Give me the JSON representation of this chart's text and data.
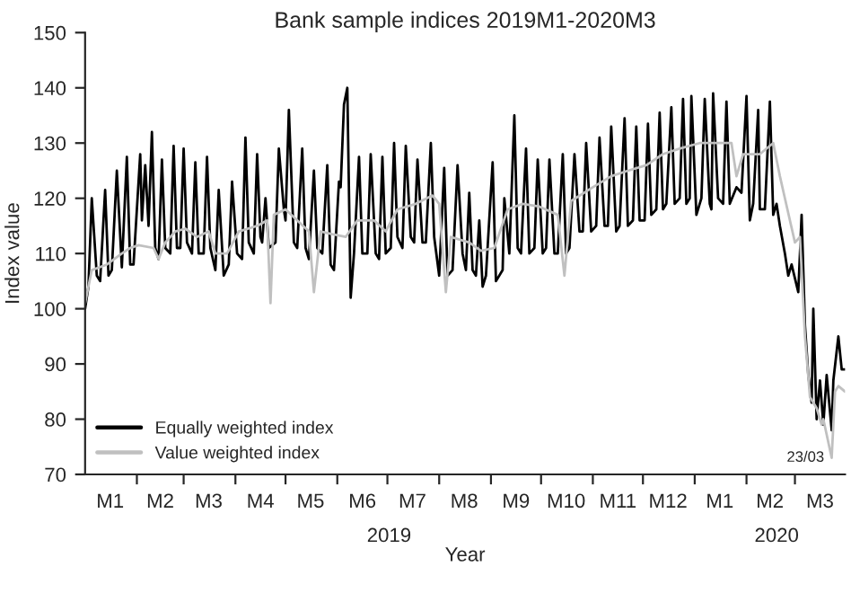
{
  "chart_data": {
    "type": "line",
    "title": "Bank sample indices 2019M1-2020M3",
    "xlabel": "Year",
    "ylabel": "Index value",
    "xlim": [
      "2019-01-01",
      "2020-03-31"
    ],
    "ylim": [
      70,
      150
    ],
    "yticks": [
      70,
      80,
      90,
      100,
      110,
      120,
      130,
      140,
      150
    ],
    "xticks": [
      {
        "value": "2019-01-16",
        "label": "M1"
      },
      {
        "value": "2019-02-01",
        "label": null
      },
      {
        "value": "2019-02-15",
        "label": "M2"
      },
      {
        "value": "2019-03-01",
        "label": null
      },
      {
        "value": "2019-03-16",
        "label": "M3"
      },
      {
        "value": "2019-04-01",
        "label": null
      },
      {
        "value": "2019-04-16",
        "label": "M4"
      },
      {
        "value": "2019-05-01",
        "label": null
      },
      {
        "value": "2019-05-16",
        "label": "M5"
      },
      {
        "value": "2019-06-01",
        "label": null
      },
      {
        "value": "2019-06-16",
        "label": "M6"
      },
      {
        "value": "2019-07-01",
        "label": null
      },
      {
        "value": "2019-07-16",
        "label": "M7"
      },
      {
        "value": "2019-08-01",
        "label": null
      },
      {
        "value": "2019-08-16",
        "label": "M8"
      },
      {
        "value": "2019-09-01",
        "label": null
      },
      {
        "value": "2019-09-16",
        "label": "M9"
      },
      {
        "value": "2019-10-01",
        "label": null
      },
      {
        "value": "2019-10-16",
        "label": "M10"
      },
      {
        "value": "2019-11-01",
        "label": null
      },
      {
        "value": "2019-11-16",
        "label": "M11"
      },
      {
        "value": "2019-12-01",
        "label": null
      },
      {
        "value": "2019-12-16",
        "label": "M12"
      },
      {
        "value": "2020-01-01",
        "label": null
      },
      {
        "value": "2020-01-16",
        "label": "M1"
      },
      {
        "value": "2020-02-01",
        "label": null
      },
      {
        "value": "2020-02-15",
        "label": "M2"
      },
      {
        "value": "2020-03-01",
        "label": null
      },
      {
        "value": "2020-03-16",
        "label": "M3"
      }
    ],
    "grid": false,
    "legend": "bottom left",
    "marker": "none",
    "line_style": "solid",
    "annotations": [
      "2019",
      "2020",
      {
        "text": "23/03",
        "x": "2020-03-23",
        "y": 73
      }
    ],
    "series": [
      {
        "name": "Equally weighted index",
        "color": "#000000",
        "x": [
          "2019-01-01",
          "2019-01-03",
          "2019-01-05",
          "2019-01-08",
          "2019-01-10",
          "2019-01-13",
          "2019-01-15",
          "2019-01-17",
          "2019-01-20",
          "2019-01-23",
          "2019-01-26",
          "2019-01-28",
          "2019-01-30",
          "2019-02-03",
          "2019-02-04",
          "2019-02-06",
          "2019-02-08",
          "2019-02-10",
          "2019-02-12",
          "2019-02-14",
          "2019-02-16",
          "2019-02-18",
          "2019-02-21",
          "2019-02-23",
          "2019-02-25",
          "2019-02-27",
          "2019-03-01",
          "2019-03-03",
          "2019-03-06",
          "2019-03-08",
          "2019-03-10",
          "2019-03-13",
          "2019-03-15",
          "2019-03-17",
          "2019-03-20",
          "2019-03-22",
          "2019-03-25",
          "2019-03-28",
          "2019-03-30",
          "2019-04-02",
          "2019-04-05",
          "2019-04-07",
          "2019-04-09",
          "2019-04-12",
          "2019-04-14",
          "2019-04-16",
          "2019-04-17",
          "2019-04-19",
          "2019-04-21",
          "2019-04-25",
          "2019-04-27",
          "2019-04-30",
          "2019-05-01",
          "2019-05-03",
          "2019-05-06",
          "2019-05-08",
          "2019-05-11",
          "2019-05-13",
          "2019-05-15",
          "2019-05-18",
          "2019-05-20",
          "2019-05-23",
          "2019-05-26",
          "2019-05-28",
          "2019-05-30",
          "2019-06-02",
          "2019-06-03",
          "2019-06-05",
          "2019-06-07",
          "2019-06-09",
          "2019-06-11",
          "2019-06-14",
          "2019-06-16",
          "2019-06-19",
          "2019-06-21",
          "2019-06-24",
          "2019-06-26",
          "2019-06-28",
          "2019-06-30",
          "2019-07-03",
          "2019-07-05",
          "2019-07-07",
          "2019-07-10",
          "2019-07-12",
          "2019-07-15",
          "2019-07-17",
          "2019-07-19",
          "2019-07-22",
          "2019-07-24",
          "2019-07-27",
          "2019-07-29",
          "2019-08-01",
          "2019-08-04",
          "2019-08-06",
          "2019-08-09",
          "2019-08-12",
          "2019-08-15",
          "2019-08-17",
          "2019-08-19",
          "2019-08-21",
          "2019-08-23",
          "2019-08-25",
          "2019-08-27",
          "2019-08-29",
          "2019-09-02",
          "2019-09-04",
          "2019-09-08",
          "2019-09-09",
          "2019-09-12",
          "2019-09-15",
          "2019-09-17",
          "2019-09-19",
          "2019-09-22",
          "2019-09-24",
          "2019-09-27",
          "2019-09-29",
          "2019-10-02",
          "2019-10-04",
          "2019-10-06",
          "2019-10-09",
          "2019-10-11",
          "2019-10-14",
          "2019-10-16",
          "2019-10-18",
          "2019-10-21",
          "2019-10-24",
          "2019-10-26",
          "2019-10-28",
          "2019-10-31",
          "2019-11-03",
          "2019-11-05",
          "2019-11-08",
          "2019-11-10",
          "2019-11-12",
          "2019-11-15",
          "2019-11-17",
          "2019-11-20",
          "2019-11-22",
          "2019-11-25",
          "2019-11-27",
          "2019-11-29",
          "2019-12-02",
          "2019-12-04",
          "2019-12-06",
          "2019-12-09",
          "2019-12-11",
          "2019-12-13",
          "2019-12-15",
          "2019-12-18",
          "2019-12-20",
          "2019-12-23",
          "2019-12-25",
          "2019-12-27",
          "2019-12-29",
          "2019-12-30",
          "2020-01-02",
          "2020-01-05",
          "2020-01-07",
          "2020-01-10",
          "2020-01-11",
          "2020-01-12",
          "2020-01-15",
          "2020-01-18",
          "2020-01-20",
          "2020-01-22",
          "2020-01-26",
          "2020-01-29",
          "2020-02-01",
          "2020-02-03",
          "2020-02-05",
          "2020-02-08",
          "2020-02-09",
          "2020-02-12",
          "2020-02-15",
          "2020-02-17",
          "2020-02-19",
          "2020-02-21",
          "2020-02-24",
          "2020-02-26",
          "2020-02-28",
          "2020-03-03",
          "2020-03-05",
          "2020-03-07",
          "2020-03-09",
          "2020-03-11",
          "2020-03-12",
          "2020-03-14",
          "2020-03-16",
          "2020-03-18",
          "2020-03-20",
          "2020-03-23",
          "2020-03-24",
          "2020-03-27",
          "2020-03-29",
          "2020-03-31"
        ],
        "values": [
          100,
          104,
          120,
          106,
          105,
          121.5,
          106,
          107,
          125,
          107.5,
          127.5,
          108,
          108,
          128,
          116,
          126,
          115,
          132,
          111,
          109,
          127,
          111,
          110,
          129.5,
          111,
          111,
          129,
          112,
          110,
          126.5,
          110,
          110,
          127.5,
          111,
          107,
          121.5,
          106,
          108,
          123,
          110,
          109,
          131,
          112,
          110,
          128,
          113,
          112,
          120,
          111,
          112,
          129,
          118,
          116,
          136,
          112,
          111,
          129,
          111,
          109,
          125,
          111,
          110,
          126,
          108,
          107,
          123,
          122,
          137,
          140,
          102,
          110,
          127.5,
          110,
          110,
          128,
          110,
          109,
          127.5,
          110,
          111,
          130,
          113,
          111,
          129.5,
          113,
          112,
          127,
          112,
          112,
          130,
          113,
          106,
          125.5,
          106,
          107,
          126,
          110,
          107,
          121,
          107,
          106,
          116,
          104,
          106,
          126.5,
          105,
          107,
          120,
          110,
          135,
          111,
          110,
          129,
          110,
          111,
          127,
          110,
          111,
          127,
          110,
          110,
          128,
          110,
          111,
          128,
          114,
          114,
          130,
          114,
          115,
          131,
          115,
          115,
          133,
          114,
          115,
          134.5,
          115,
          116,
          133,
          116,
          116,
          133.5,
          117,
          118,
          135.5,
          118,
          119,
          136.5,
          119,
          120,
          138,
          119,
          120,
          138.5,
          117,
          120,
          138,
          119,
          118,
          139,
          120,
          119,
          137.5,
          119,
          122,
          121,
          138.5,
          116,
          119,
          136,
          118,
          118,
          137.5,
          117,
          119,
          115,
          110,
          106,
          108,
          103,
          117,
          97,
          88,
          83,
          100,
          80,
          87,
          79,
          88,
          78,
          87,
          95,
          89,
          89
        ]
      },
      {
        "name": "Value weighted index",
        "color": "#c0c0c0",
        "x": [
          "2019-01-01",
          "2019-01-05",
          "2019-01-14",
          "2019-01-23",
          "2019-01-28",
          "2019-02-02",
          "2019-02-11",
          "2019-02-14",
          "2019-02-18",
          "2019-02-24",
          "2019-03-02",
          "2019-03-09",
          "2019-03-16",
          "2019-03-20",
          "2019-03-27",
          "2019-04-03",
          "2019-04-14",
          "2019-04-20",
          "2019-04-22",
          "2019-04-24",
          "2019-05-01",
          "2019-05-08",
          "2019-05-15",
          "2019-05-18",
          "2019-05-22",
          "2019-05-29",
          "2019-06-06",
          "2019-06-13",
          "2019-06-23",
          "2019-06-30",
          "2019-07-07",
          "2019-07-18",
          "2019-07-28",
          "2019-08-01",
          "2019-08-05",
          "2019-08-08",
          "2019-08-19",
          "2019-08-26",
          "2019-09-03",
          "2019-09-11",
          "2019-09-20",
          "2019-09-30",
          "2019-10-11",
          "2019-10-15",
          "2019-10-19",
          "2019-11-01",
          "2019-11-12",
          "2019-11-22",
          "2019-12-03",
          "2019-12-13",
          "2019-12-23",
          "2020-01-04",
          "2020-01-14",
          "2020-01-23",
          "2020-01-26",
          "2020-01-30",
          "2020-02-09",
          "2020-02-17",
          "2020-02-21",
          "2020-02-24",
          "2020-03-01",
          "2020-03-04",
          "2020-03-07",
          "2020-03-10",
          "2020-03-14",
          "2020-03-17",
          "2020-03-18",
          "2020-03-23",
          "2020-03-25",
          "2020-03-27",
          "2020-03-31"
        ],
        "values": [
          101,
          107,
          108,
          110,
          111,
          111.5,
          111,
          109,
          112,
          114,
          114.5,
          113,
          114,
          110,
          110,
          114,
          115,
          116,
          101,
          117,
          118,
          116,
          114,
          103,
          114,
          113.5,
          113,
          116,
          116,
          114,
          118,
          119,
          120.5,
          119,
          103,
          113,
          112,
          110.5,
          111,
          118,
          119,
          118.5,
          117,
          106,
          119.5,
          122,
          124,
          125,
          126,
          128,
          129,
          130,
          130,
          130,
          124,
          128,
          128,
          130,
          124,
          120,
          112,
          113,
          95,
          84,
          82,
          79,
          80,
          73,
          85,
          86,
          85
        ]
      }
    ]
  }
}
